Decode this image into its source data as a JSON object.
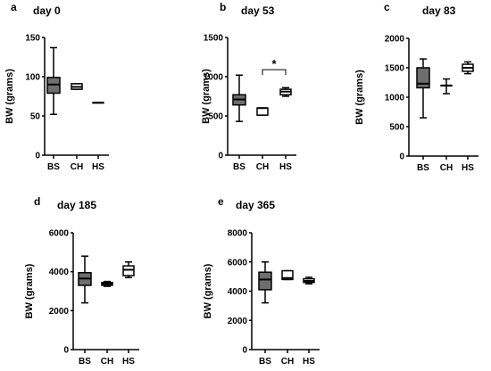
{
  "colors": {
    "box_fill": "#6e6e6e",
    "stroke": "#000000"
  },
  "chart_data": [
    {
      "type": "box",
      "panel": "a",
      "title": "day 0",
      "ylabel": "BW (grams)",
      "ylim": [
        0,
        150
      ],
      "yticks": [
        0,
        50,
        100,
        150
      ],
      "categories": [
        "BS",
        "CH",
        "HS"
      ],
      "boxes": [
        {
          "category": "BS",
          "min": 52,
          "q1": 79,
          "median": 90,
          "q3": 99,
          "max": 137,
          "shaded": true
        },
        {
          "category": "CH",
          "min": 84,
          "q1": 84,
          "median": 87,
          "q3": 91,
          "max": 91,
          "shaded": false
        },
        {
          "category": "HS",
          "min": 67,
          "q1": 67,
          "median": 67,
          "q3": 67,
          "max": 67,
          "shaded": false
        }
      ],
      "significance": []
    },
    {
      "type": "box",
      "panel": "b",
      "title": "day 53",
      "ylabel": "BW (grams)",
      "ylim": [
        0,
        1500
      ],
      "yticks": [
        0,
        500,
        1000,
        1500
      ],
      "categories": [
        "BS",
        "CH",
        "HS"
      ],
      "boxes": [
        {
          "category": "BS",
          "min": 430,
          "q1": 640,
          "median": 710,
          "q3": 770,
          "max": 1020,
          "shaded": true
        },
        {
          "category": "CH",
          "min": 510,
          "q1": 510,
          "median": 600,
          "q3": 600,
          "max": 600,
          "shaded": false
        },
        {
          "category": "HS",
          "min": 750,
          "q1": 770,
          "median": 810,
          "q3": 840,
          "max": 860,
          "shaded": false
        }
      ],
      "significance": [
        {
          "from": "CH",
          "to": "HS",
          "label": "*",
          "y": 1090
        }
      ]
    },
    {
      "type": "box",
      "panel": "c",
      "title": "day 83",
      "ylabel": "BW (grams)",
      "ylim": [
        0,
        2000
      ],
      "yticks": [
        0,
        500,
        1000,
        1500,
        2000
      ],
      "categories": [
        "BS",
        "CH",
        "HS"
      ],
      "boxes": [
        {
          "category": "BS",
          "min": 650,
          "q1": 1160,
          "median": 1230,
          "q3": 1500,
          "max": 1650,
          "shaded": true
        },
        {
          "category": "CH",
          "min": 1060,
          "q1": 1200,
          "median": 1200,
          "q3": 1200,
          "max": 1310,
          "shaded": false
        },
        {
          "category": "HS",
          "min": 1400,
          "q1": 1440,
          "median": 1500,
          "q3": 1560,
          "max": 1600,
          "shaded": false
        }
      ],
      "significance": []
    },
    {
      "type": "box",
      "panel": "d",
      "title": "day 185",
      "ylabel": "BW (grams)",
      "ylim": [
        0,
        6000
      ],
      "yticks": [
        0,
        2000,
        4000,
        6000
      ],
      "categories": [
        "BS",
        "CH",
        "HS"
      ],
      "boxes": [
        {
          "category": "BS",
          "min": 2400,
          "q1": 3300,
          "median": 3650,
          "q3": 3950,
          "max": 4800,
          "shaded": true
        },
        {
          "category": "CH",
          "min": 3250,
          "q1": 3300,
          "median": 3380,
          "q3": 3450,
          "max": 3500,
          "shaded": false
        },
        {
          "category": "HS",
          "min": 3700,
          "q1": 3800,
          "median": 4100,
          "q3": 4300,
          "max": 4500,
          "shaded": false
        }
      ],
      "significance": []
    },
    {
      "type": "box",
      "panel": "e",
      "title": "day 365",
      "ylabel": "BW (grams)",
      "ylim": [
        0,
        8000
      ],
      "yticks": [
        0,
        2000,
        4000,
        6000,
        8000
      ],
      "categories": [
        "BS",
        "CH",
        "HS"
      ],
      "boxes": [
        {
          "category": "BS",
          "min": 3200,
          "q1": 4100,
          "median": 4800,
          "q3": 5300,
          "max": 6000,
          "shaded": true
        },
        {
          "category": "CH",
          "min": 4800,
          "q1": 4800,
          "median": 4900,
          "q3": 5400,
          "max": 5400,
          "shaded": false
        },
        {
          "category": "HS",
          "min": 4500,
          "q1": 4600,
          "median": 4700,
          "q3": 4850,
          "max": 4950,
          "shaded": false
        }
      ],
      "significance": []
    }
  ]
}
